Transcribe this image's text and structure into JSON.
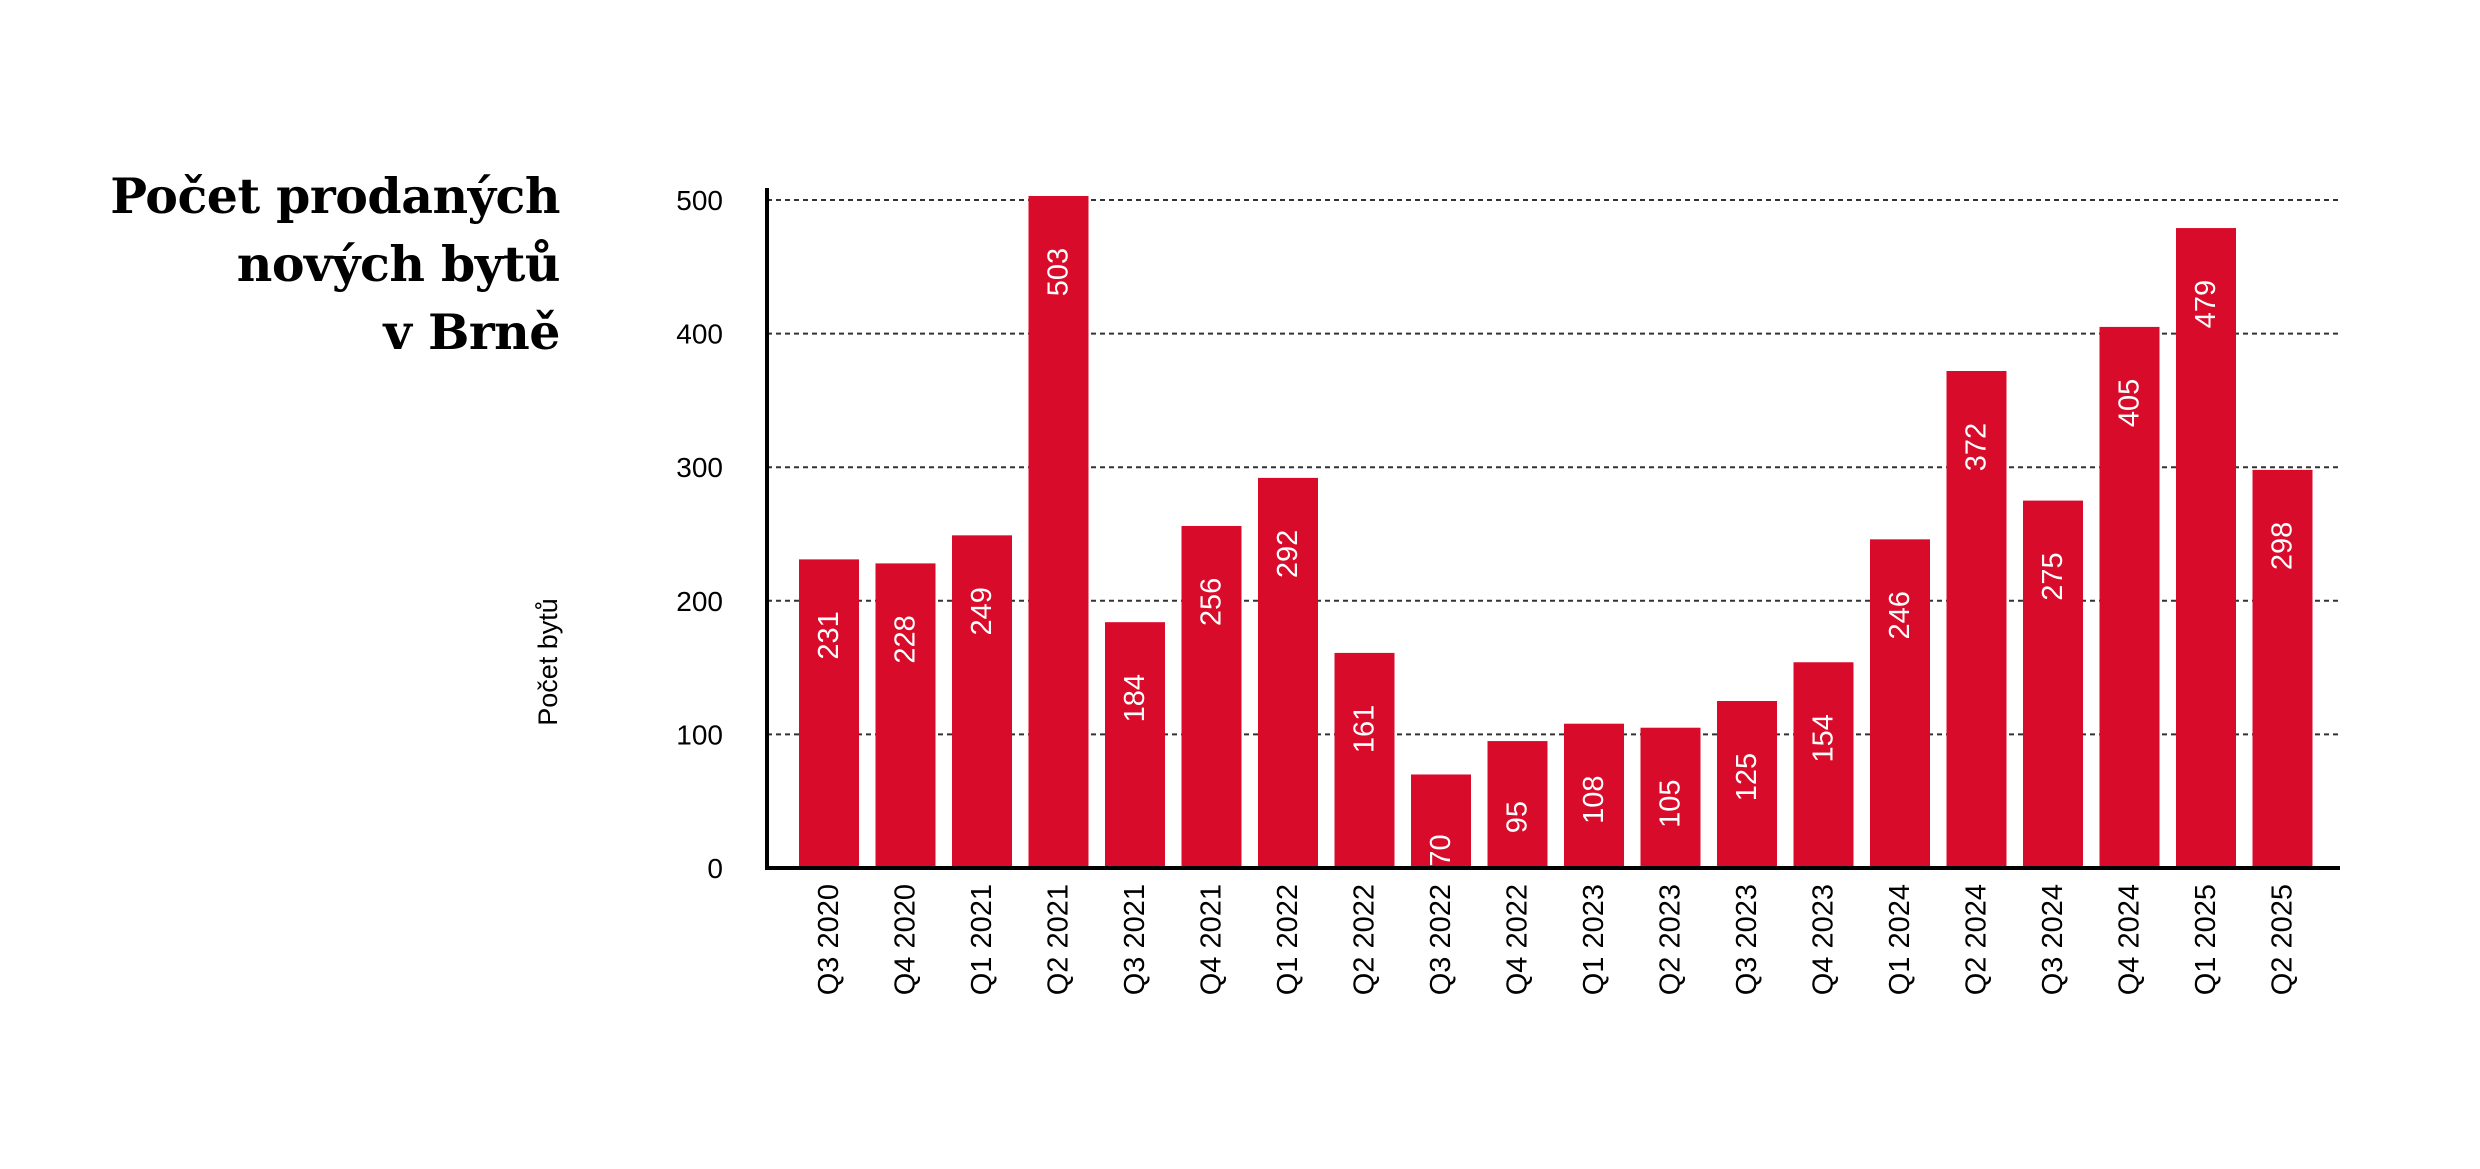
{
  "chart_data": {
    "type": "bar",
    "title_lines": [
      "Počet prodaných",
      "nových bytů",
      "v Brně"
    ],
    "ylabel": "Počet bytů",
    "xlabel": "",
    "ylim": [
      0,
      500
    ],
    "yticks": [
      0,
      100,
      200,
      300,
      400,
      500
    ],
    "grid": "horizontal dashed",
    "bar_color": "#D90B2A",
    "categories": [
      "Q3 2020",
      "Q4 2020",
      "Q1 2021",
      "Q2 2021",
      "Q3 2021",
      "Q4 2021",
      "Q1 2022",
      "Q2 2022",
      "Q3 2022",
      "Q4 2022",
      "Q1 2023",
      "Q2 2023",
      "Q3 2023",
      "Q4 2023",
      "Q1 2024",
      "Q2 2024",
      "Q3 2024",
      "Q4 2024",
      "Q1 2025",
      "Q2 2025"
    ],
    "values": [
      231,
      228,
      249,
      503,
      184,
      256,
      292,
      161,
      70,
      95,
      108,
      105,
      125,
      154,
      246,
      372,
      275,
      405,
      479,
      298
    ]
  }
}
